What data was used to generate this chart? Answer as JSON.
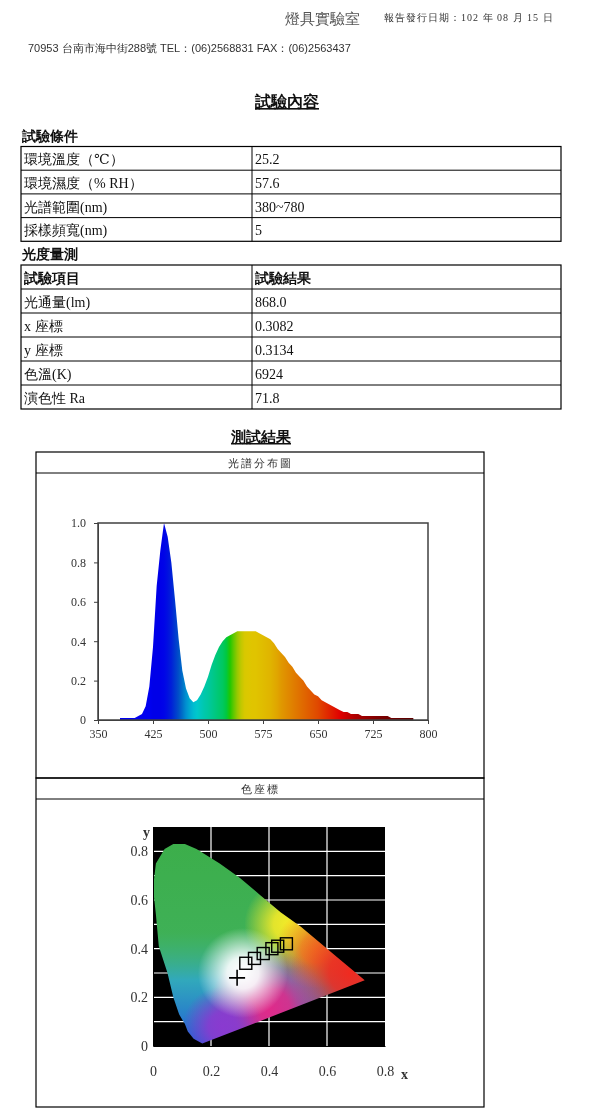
{
  "chart_data": [
    {
      "type": "other",
      "annotations": [
        "燈具實驗室",
        "報告發行日期：102 年 08 月 15 日",
        "70953 台南市海中街288號 TEL：(06)2568831 FAX：(06)2563437"
      ]
    },
    {
      "type": "other",
      "title": "試驗內容",
      "subtitle": "試驗條件",
      "annotations": [
        "環境溫度（℃）",
        "25.2",
        "環境濕度（% RH）",
        "57.6",
        "光譜範圍(nm)",
        "380~780",
        "採樣頻寬(nm)",
        "5"
      ]
    },
    {
      "type": "other",
      "title": "光度量測",
      "annotations": [
        "試驗項目",
        "試驗結果",
        "光通量(lm)",
        "868.0",
        "x 座標",
        "0.3082",
        "y 座標",
        "0.3134",
        "色溫(K)",
        "6924",
        "演色性 Ra",
        "71.8"
      ]
    },
    {
      "type": "area",
      "title": "測試結果",
      "subtitle": "光譜分布圖",
      "x": [
        380,
        385,
        390,
        395,
        400,
        405,
        410,
        415,
        420,
        425,
        430,
        435,
        440,
        445,
        450,
        455,
        460,
        465,
        470,
        475,
        480,
        485,
        490,
        495,
        500,
        505,
        510,
        515,
        520,
        525,
        530,
        535,
        540,
        545,
        550,
        555,
        560,
        565,
        570,
        575,
        580,
        585,
        590,
        595,
        600,
        605,
        610,
        615,
        620,
        625,
        630,
        635,
        640,
        645,
        650,
        655,
        660,
        665,
        670,
        675,
        680,
        685,
        690,
        695,
        700,
        705,
        710,
        715,
        720,
        725,
        730,
        735,
        740,
        745,
        750,
        755,
        760,
        765,
        770,
        775,
        780
      ],
      "values": [
        0.01,
        0.01,
        0.01,
        0.01,
        0.01,
        0.02,
        0.03,
        0.07,
        0.17,
        0.37,
        0.68,
        0.86,
        1.0,
        0.93,
        0.8,
        0.61,
        0.41,
        0.25,
        0.16,
        0.11,
        0.09,
        0.1,
        0.13,
        0.17,
        0.22,
        0.28,
        0.33,
        0.37,
        0.4,
        0.42,
        0.43,
        0.44,
        0.45,
        0.45,
        0.45,
        0.45,
        0.45,
        0.45,
        0.44,
        0.43,
        0.42,
        0.41,
        0.39,
        0.36,
        0.34,
        0.32,
        0.29,
        0.27,
        0.24,
        0.22,
        0.2,
        0.17,
        0.15,
        0.13,
        0.12,
        0.1,
        0.09,
        0.08,
        0.07,
        0.06,
        0.05,
        0.04,
        0.04,
        0.03,
        0.03,
        0.03,
        0.02,
        0.02,
        0.02,
        0.02,
        0.02,
        0.02,
        0.02,
        0.02,
        0.01,
        0.01,
        0.01,
        0.01,
        0.01,
        0.01,
        0.01
      ],
      "colors": [
        "#0000f0",
        "#0000f0",
        "#0000f0",
        "#0000f0",
        "#0000f0",
        "#0000f0",
        "#0000f0",
        "#0000f0",
        "#0000f0",
        "#0000e8",
        "#0000e8",
        "#0000e8",
        "#0004e8",
        "#0010e0",
        "#0020d8",
        "#0038d0",
        "#0050c8",
        "#0070c8",
        "#0090d0",
        "#00a8d0",
        "#00bcd0",
        "#00c8cc",
        "#00c8bc",
        "#00c8ac",
        "#00c8a0",
        "#00c890",
        "#00c880",
        "#00c870",
        "#00c860",
        "#00c840",
        "#20c800",
        "#60c800",
        "#98c800",
        "#c0c800",
        "#d8c800",
        "#dcc800",
        "#e0c400",
        "#e0c400",
        "#e0c000",
        "#e0bc00",
        "#e0b800",
        "#e0b400",
        "#e0ac00",
        "#e0a400",
        "#e09800",
        "#e09000",
        "#e08800",
        "#e08000",
        "#e07800",
        "#e07000",
        "#e06800",
        "#e06000",
        "#e05800",
        "#e05000",
        "#e04800",
        "#e03c00",
        "#e03000",
        "#e02400",
        "#e01800",
        "#e00c00",
        "#e00000",
        "#d40000",
        "#c80000",
        "#bc0000",
        "#b00000",
        "#a80000",
        "#a00000",
        "#980000",
        "#900000",
        "#880000",
        "#800000",
        "#7c0000",
        "#780000",
        "#740000",
        "#700000",
        "#6c0000",
        "#680000",
        "#640000",
        "#600000",
        "#600000",
        "#600000"
      ],
      "xlim": [
        350,
        800
      ],
      "xticks": [
        350,
        425,
        500,
        575,
        650,
        725,
        800
      ],
      "ylim": [
        0,
        1
      ],
      "yticks": [
        0,
        0.2,
        0.4,
        0.6,
        0.8,
        {
          "value": 1,
          "label": "1.0"
        }
      ]
    },
    {
      "type": "scatter",
      "title": "色座標",
      "xlabel": "x",
      "ylabel": "y",
      "xlim": [
        0,
        0.8
      ],
      "xticks": [
        0,
        0.2,
        0.4,
        0.6,
        0.8
      ],
      "ylim": [
        0,
        0.9
      ],
      "yticks": [
        0,
        {
          "value": 0.1,
          "label": null
        },
        0.2,
        {
          "value": 0.3,
          "label": null
        },
        0.4,
        {
          "value": 0.5,
          "label": null
        },
        0.6,
        {
          "value": 0.7,
          "label": null
        },
        0.8
      ],
      "grid": true,
      "series": [
        {
          "type": "area",
          "color": "#3cae4a",
          "x": [
            0.17,
            0.14,
            0.12,
            0.11,
            0.09,
            0.07,
            0.05,
            0.02,
            0.01,
            0.0,
            0.01,
            0.04,
            0.07,
            0.11,
            0.15,
            0.23,
            0.3,
            0.37,
            0.44,
            0.51,
            0.58,
            0.63,
            0.69,
            0.72,
            0.73,
            0.17
          ],
          "values": [
            0.01,
            0.03,
            0.06,
            0.09,
            0.13,
            0.2,
            0.3,
            0.41,
            0.54,
            0.65,
            0.75,
            0.81,
            0.83,
            0.83,
            0.81,
            0.75,
            0.69,
            0.62,
            0.55,
            0.49,
            0.42,
            0.37,
            0.31,
            0.28,
            0.27,
            0.01
          ]
        },
        {
          "marker": "square",
          "color": "#000000",
          "x": [
            0.32,
            0.35,
            0.38,
            0.41,
            0.43,
            0.46
          ],
          "values": [
            0.34,
            0.36,
            0.38,
            0.4,
            0.41,
            0.42
          ]
        },
        {
          "marker": "cross",
          "color": "#000000",
          "x": [
            0.29
          ],
          "values": [
            0.28
          ]
        }
      ]
    }
  ]
}
